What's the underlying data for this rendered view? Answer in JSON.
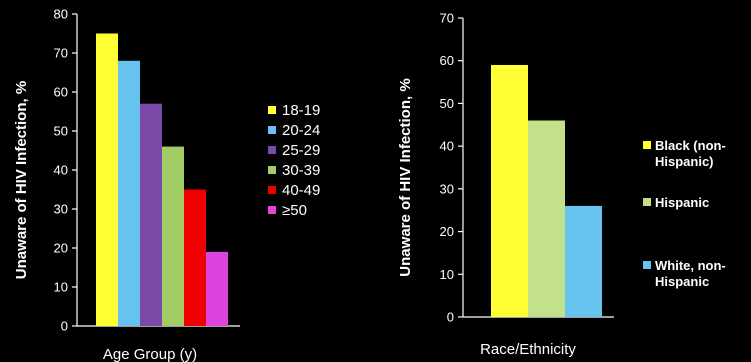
{
  "chart_data": [
    {
      "type": "bar",
      "ylabel": "Unaware of HIV Infection, %",
      "xlabel": "Age Group (y)",
      "ylim": [
        0,
        80
      ],
      "yticks": [
        0,
        10,
        20,
        30,
        40,
        50,
        60,
        70,
        80
      ],
      "categories": [
        "18-19",
        "20-24",
        "25-29",
        "30-39",
        "40-49",
        "≥50"
      ],
      "values": [
        75,
        68,
        57,
        46,
        35,
        19
      ],
      "colors": [
        "#ffff33",
        "#66c2ee",
        "#7b4aa8",
        "#a3cc66",
        "#ee0000",
        "#dd44dd"
      ],
      "legend": [
        "18-19",
        "20-24",
        "25-29",
        "30-39",
        "40-49",
        "≥50"
      ],
      "legend_position": "right"
    },
    {
      "type": "bar",
      "ylabel": "Unaware of HIV Infection, %",
      "xlabel": "Race/Ethnicity",
      "ylim": [
        0,
        70
      ],
      "yticks": [
        0,
        10,
        20,
        30,
        40,
        50,
        60,
        70
      ],
      "categories": [
        "Black (non-Hispanic)",
        "Hispanic",
        "White, non-Hispanic"
      ],
      "values": [
        59,
        46,
        26
      ],
      "colors": [
        "#ffff33",
        "#c3e08a",
        "#66c2ee"
      ],
      "legend": [
        [
          "Black (non-",
          "Hispanic)"
        ],
        [
          "Hispanic"
        ],
        [
          "White, non-",
          "Hispanic"
        ]
      ],
      "legend_position": "right"
    }
  ]
}
